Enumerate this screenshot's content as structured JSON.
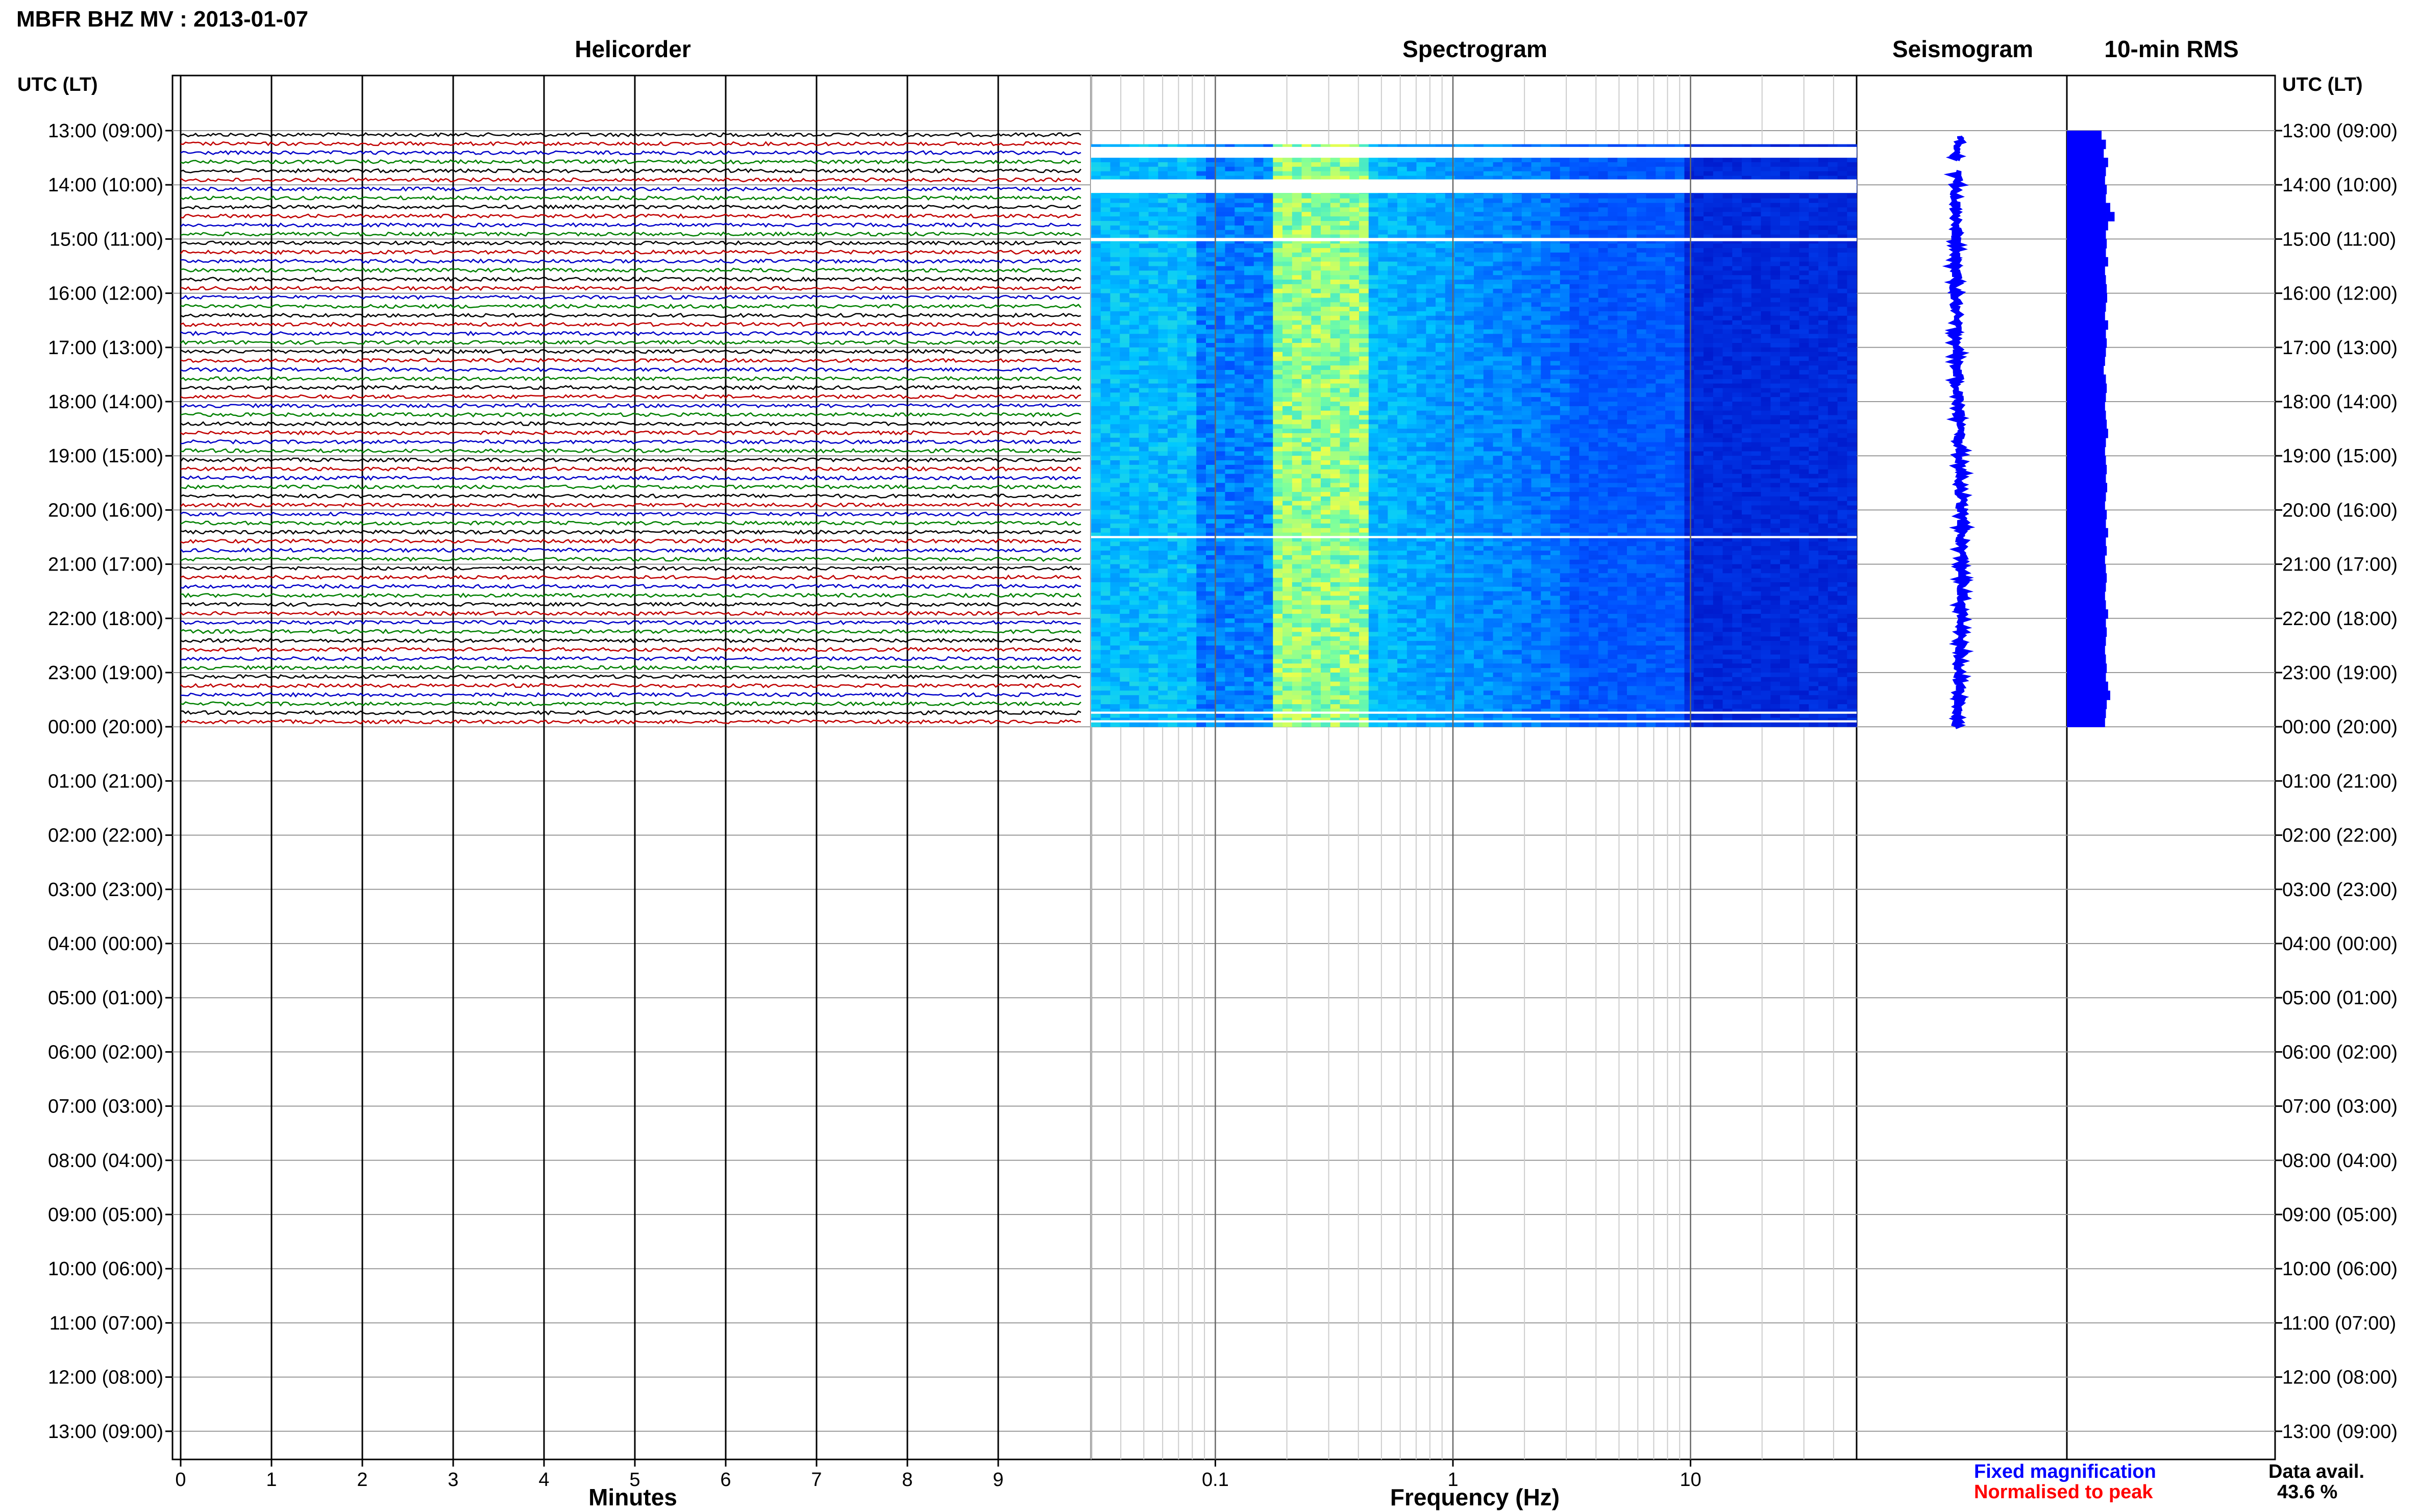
{
  "title": "MBFR BHZ MV : 2013-01-07",
  "panels": {
    "helicorder": "Helicorder",
    "spectrogram": "Spectrogram",
    "seismogram": "Seismogram",
    "rms": "10-min RMS"
  },
  "time_axis": {
    "header_left": "UTC (LT)",
    "header_right": "UTC (LT)",
    "labels": [
      "13:00 (09:00)",
      "14:00 (10:00)",
      "15:00 (11:00)",
      "16:00 (12:00)",
      "17:00 (13:00)",
      "18:00 (14:00)",
      "19:00 (15:00)",
      "20:00 (16:00)",
      "21:00 (17:00)",
      "22:00 (18:00)",
      "23:00 (19:00)",
      "00:00 (20:00)",
      "01:00 (21:00)",
      "02:00 (22:00)",
      "03:00 (23:00)",
      "04:00 (00:00)",
      "05:00 (01:00)",
      "06:00 (02:00)",
      "07:00 (03:00)",
      "08:00 (04:00)",
      "09:00 (05:00)",
      "10:00 (06:00)",
      "11:00 (07:00)",
      "12:00 (08:00)",
      "13:00 (09:00)"
    ]
  },
  "legend": {
    "fixed": "Fixed magnification",
    "normalised": "Normalised to peak",
    "avail_label": "Data avail.",
    "avail_value": "43.6 %"
  },
  "colors": {
    "trace_cycle": [
      "#000000",
      "#c00000",
      "#0000c8",
      "#008000"
    ],
    "seismogram": "#0000ff",
    "rms": "#0000ff",
    "fixed": "#0000ff",
    "normalised": "#ff0000"
  },
  "chart_data": [
    {
      "type": "line",
      "name": "helicorder",
      "title": "Helicorder",
      "xlabel": "Minutes",
      "xticks": [
        0,
        1,
        2,
        3,
        4,
        5,
        6,
        7,
        8,
        9
      ],
      "xlim": [
        0,
        10
      ],
      "traces_per_hour": 6,
      "data_start": "13:00 (09:00)",
      "data_end": "00:00 (20:00)"
    },
    {
      "type": "heatmap",
      "name": "spectrogram",
      "title": "Spectrogram",
      "xlabel": "Frequency (Hz)",
      "xscale": "log",
      "xlim": [
        0.03,
        50
      ],
      "xticks": [
        0.1,
        1,
        10
      ],
      "xtick_labels": [
        "0.1",
        "1",
        "10"
      ],
      "peak_band_hz": [
        0.2,
        0.4
      ],
      "data_start": "13:00 (09:00)",
      "data_end": "00:00 (20:00)",
      "gaps_utc": [
        "13:20-13:40",
        "14:15-14:30",
        "15:00",
        "20:30",
        "23:40",
        "23:55"
      ]
    },
    {
      "type": "line",
      "name": "seismogram",
      "title": "Seismogram",
      "data_start": "13:00 (09:00)",
      "data_end": "00:00 (20:00)"
    },
    {
      "type": "bar",
      "name": "rms",
      "title": "10-min RMS",
      "orientation": "horizontal",
      "interval_minutes": 10,
      "values": [
        0.8,
        0.9,
        0.85,
        0.95,
        0.9,
        0.88,
        0.92,
        0.9,
        1.0,
        1.1,
        0.95,
        0.9,
        0.92,
        0.9,
        0.95,
        0.88,
        0.9,
        0.92,
        0.93,
        0.9,
        0.88,
        0.95,
        0.9,
        0.92,
        0.9,
        0.88,
        0.85,
        0.9,
        0.92,
        0.9,
        0.88,
        0.9,
        0.92,
        0.95,
        0.9,
        0.88,
        0.9,
        0.92,
        0.9,
        0.93,
        0.9,
        0.88,
        0.92,
        0.9,
        0.95,
        0.9,
        0.92,
        0.88,
        0.9,
        0.92,
        0.9,
        0.88,
        0.9,
        0.95,
        0.9,
        0.92,
        0.9,
        0.88,
        0.9,
        0.92,
        0.9,
        0.95,
        1.0,
        0.92,
        0.9,
        0.88
      ]
    }
  ]
}
